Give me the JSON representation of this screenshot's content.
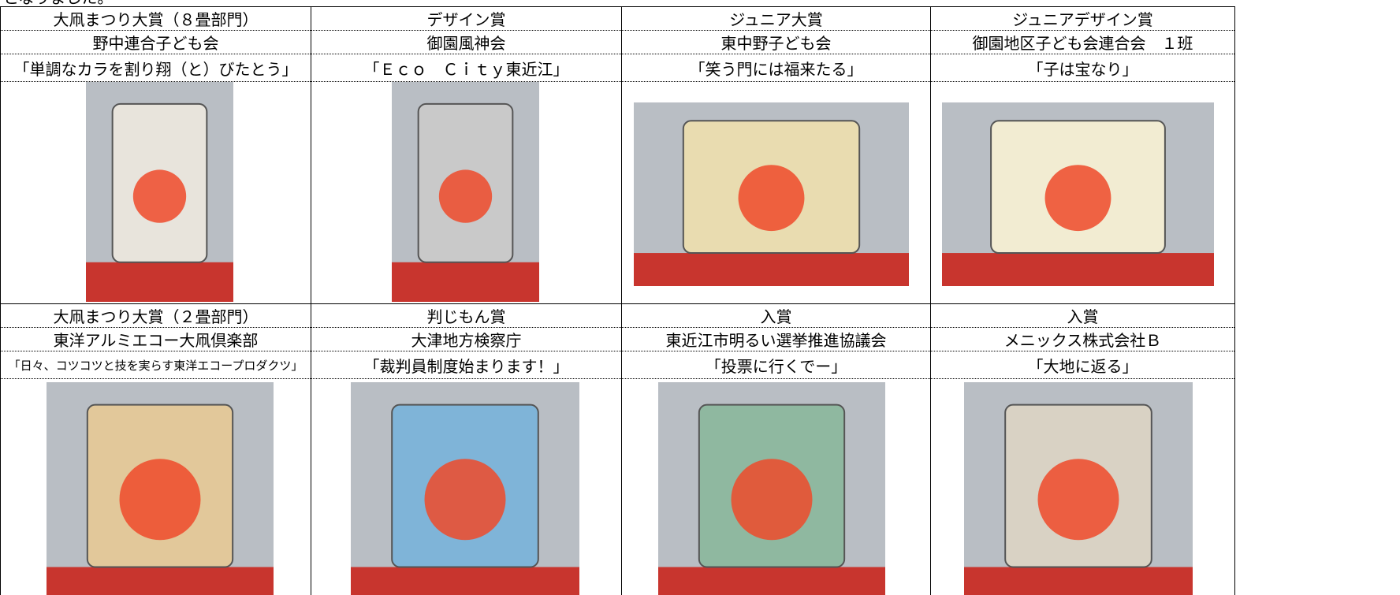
{
  "intro": "となりました。",
  "entries": [
    {
      "award": "大凧まつり大賞（８畳部門）",
      "group": "野中連合子ども会",
      "title": "「単調なカラを割り翔（と）びたとう」"
    },
    {
      "award": "デザイン賞",
      "group": "御園風神会",
      "title": "「Ｅｃｏ　Ｃｉｔｙ東近江」"
    },
    {
      "award": "ジュニア大賞",
      "group": "東中野子ども会",
      "title": "「笑う門には福来たる」"
    },
    {
      "award": "ジュニアデザイン賞",
      "group": "御園地区子ども会連合会　１班",
      "title": "「子は宝なり」"
    },
    {
      "award": "大凧まつり大賞（２畳部門）",
      "group": "東洋アルミエコー大凧倶楽部",
      "title": "「日々、コツコツと技を実らす東洋エコープロダクツ」"
    },
    {
      "award": "判じもん賞",
      "group": "大津地方検察庁",
      "title": "「裁判員制度始まります！」"
    },
    {
      "award": "入賞",
      "group": "東近江市明るい選挙推進協議会",
      "title": "「投票に行くでー」"
    },
    {
      "award": "入賞",
      "group": "メニックス株式会社Ｂ",
      "title": "「大地に返る」"
    }
  ]
}
